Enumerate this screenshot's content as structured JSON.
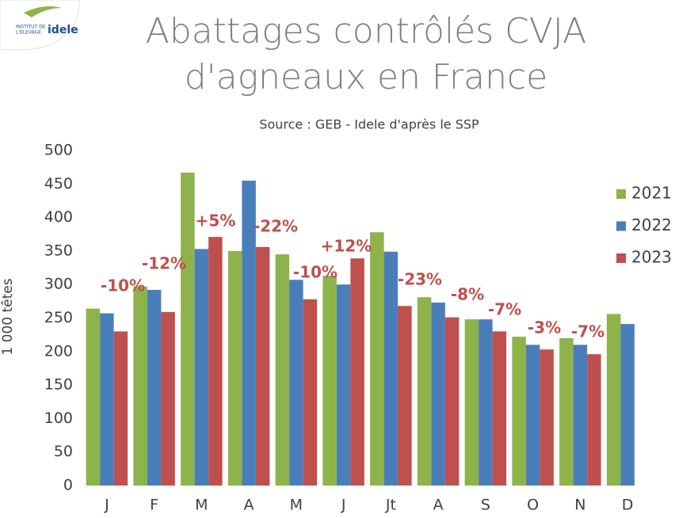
{
  "logo": {
    "line1": "INSTITUT DE",
    "line2": "L'ELEVAGE",
    "brand": "idele"
  },
  "chart_data": {
    "type": "bar",
    "title_lines": [
      "Abattages contrôlés CVJA",
      "d'agneaux en France"
    ],
    "subtitle": "Source : GEB - Idele d'après le SSP",
    "y_label": "1 000 têtes",
    "categories": [
      "J",
      "F",
      "M",
      "A",
      "M",
      "J",
      "Jt",
      "A",
      "S",
      "O",
      "N",
      "D"
    ],
    "series": [
      {
        "name": "2021",
        "color": "#8db34a",
        "values": [
          264,
          297,
          467,
          350,
          345,
          313,
          378,
          281,
          248,
          222,
          220,
          256
        ]
      },
      {
        "name": "2022",
        "color": "#4a7ebb",
        "values": [
          257,
          292,
          353,
          455,
          307,
          300,
          349,
          273,
          248,
          210,
          210,
          241
        ]
      },
      {
        "name": "2023",
        "color": "#c0504d",
        "values": [
          230,
          259,
          371,
          356,
          278,
          339,
          268,
          251,
          230,
          203,
          196,
          null
        ]
      }
    ],
    "annotations": [
      "-10%",
      "-12%",
      "+5%",
      "-22%",
      "-10%",
      "+12%",
      "-23%",
      "-8%",
      "-7%",
      "-3%",
      "-7%",
      null
    ],
    "ylim": [
      0,
      500
    ],
    "yticks": [
      0,
      50,
      100,
      150,
      200,
      250,
      300,
      350,
      400,
      450,
      500
    ],
    "grid": false,
    "legend": "right"
  }
}
